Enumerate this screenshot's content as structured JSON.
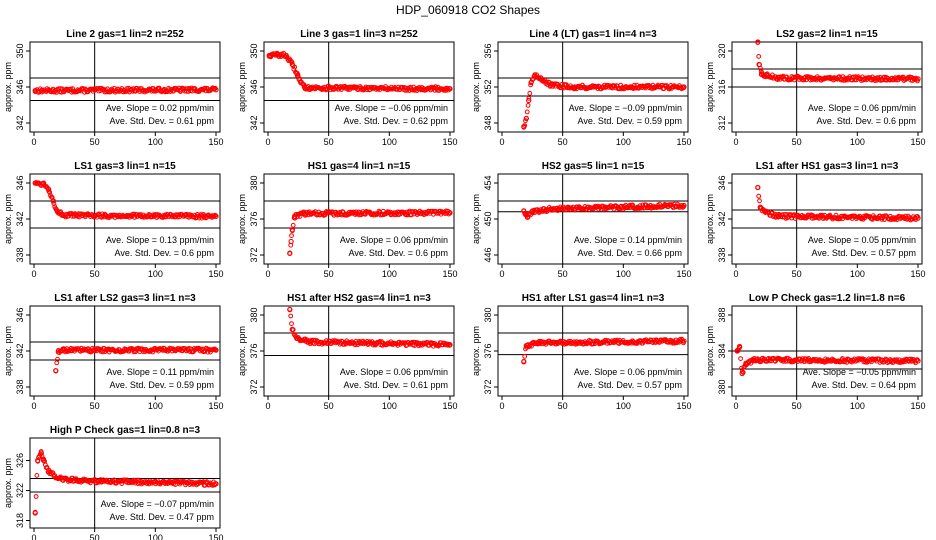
{
  "figure": {
    "title": "HDP_060918  CO2 Shapes"
  },
  "chart_data": [
    {
      "type": "scatter",
      "title": "Line 2 gas=1 lin=2 n=252",
      "ylabel": "approx. ppm",
      "xlim": [
        0,
        150
      ],
      "ylim": [
        341,
        351
      ],
      "xticks": [
        0,
        50,
        100,
        150
      ],
      "yticks": [
        342,
        346,
        350
      ],
      "hlines": [
        347,
        344.5
      ],
      "vline": 50,
      "slope_text": "Ave. Slope =  0.02  ppm/min",
      "std_text": "Ave. Std. Dev. =  0.61  ppm",
      "series": [
        {
          "start_x": 1,
          "end_x": 150,
          "points": [
            [
              1,
              345.6
            ],
            [
              150,
              345.7
            ]
          ]
        }
      ]
    },
    {
      "type": "scatter",
      "title": "Line 3 gas=1 lin=3 n=252",
      "ylabel": "approx. ppm",
      "xlim": [
        0,
        150
      ],
      "ylim": [
        341,
        351
      ],
      "xticks": [
        0,
        50,
        100,
        150
      ],
      "yticks": [
        342,
        346,
        350
      ],
      "hlines": [
        347,
        344.5
      ],
      "vline": 50,
      "slope_text": "Ave. Slope =  −0.06  ppm/min",
      "std_text": "Ave. Std. Dev. =  0.62  ppm",
      "series": [
        {
          "start_x": 1,
          "end_x": 150,
          "points": [
            [
              1,
              349.5
            ],
            [
              8,
              349.6
            ],
            [
              15,
              349.5
            ],
            [
              20,
              348.5
            ],
            [
              24,
              347.5
            ],
            [
              27,
              346.5
            ],
            [
              30,
              346.0
            ],
            [
              35,
              345.9
            ],
            [
              150,
              345.8
            ]
          ]
        }
      ]
    },
    {
      "type": "scatter",
      "title": "Line 4 (LT) gas=1 lin=4 n=3",
      "ylabel": "approx. ppm",
      "xlim": [
        0,
        150
      ],
      "ylim": [
        347,
        357
      ],
      "xticks": [
        0,
        50,
        100,
        150
      ],
      "yticks": [
        348,
        352,
        356
      ],
      "hlines": [
        353,
        351
      ],
      "vline": 50,
      "slope_text": "Ave. Slope =  −0.09  ppm/min",
      "std_text": "Ave. Std. Dev. =  0.59  ppm",
      "series": [
        {
          "start_x": 18,
          "end_x": 150,
          "points": [
            [
              18,
              347.6
            ],
            [
              20,
              348.5
            ],
            [
              22,
              350.5
            ],
            [
              24,
              352.5
            ],
            [
              27,
              353.2
            ],
            [
              32,
              353.0
            ],
            [
              40,
              352.2
            ],
            [
              60,
              352.0
            ],
            [
              150,
              352.0
            ]
          ]
        }
      ]
    },
    {
      "type": "scatter",
      "title": "LS2 gas=2 lin=1 n=15",
      "ylabel": "approx. ppm",
      "xlim": [
        0,
        150
      ],
      "ylim": [
        311,
        321
      ],
      "xticks": [
        0,
        50,
        100,
        150
      ],
      "yticks": [
        312,
        316,
        320
      ],
      "hlines": [
        318,
        316
      ],
      "vline": 50,
      "slope_text": "Ave. Slope =  0.06  ppm/min",
      "std_text": "Ave. Std. Dev. =  0.6  ppm",
      "series": [
        {
          "start_x": 18,
          "end_x": 150,
          "points": [
            [
              18,
              321.0
            ],
            [
              19,
              318.5
            ],
            [
              21,
              317.4
            ],
            [
              25,
              317.3
            ],
            [
              35,
              317.0
            ],
            [
              150,
              316.9
            ]
          ]
        }
      ]
    },
    {
      "type": "scatter",
      "title": "LS1 gas=3 lin=1 n=15",
      "ylabel": "approx. ppm",
      "xlim": [
        0,
        150
      ],
      "ylim": [
        337,
        347
      ],
      "xticks": [
        0,
        50,
        100,
        150
      ],
      "yticks": [
        338,
        342,
        346
      ],
      "hlines": [
        344,
        341
      ],
      "vline": 50,
      "slope_text": "Ave. Slope =  0.13  ppm/min",
      "std_text": "Ave. Std. Dev. =  0.6  ppm",
      "series": [
        {
          "start_x": 1,
          "end_x": 150,
          "points": [
            [
              1,
              346.0
            ],
            [
              8,
              345.9
            ],
            [
              12,
              345.3
            ],
            [
              16,
              344.0
            ],
            [
              19,
              342.9
            ],
            [
              24,
              342.4
            ],
            [
              150,
              342.3
            ]
          ]
        }
      ]
    },
    {
      "type": "scatter",
      "title": "HS1 gas=4 lin=1 n=15",
      "ylabel": "approx. ppm",
      "xlim": [
        0,
        150
      ],
      "ylim": [
        371,
        381
      ],
      "xticks": [
        0,
        50,
        100,
        150
      ],
      "yticks": [
        372,
        376,
        380
      ],
      "hlines": [
        378,
        375
      ],
      "vline": 50,
      "slope_text": "Ave. Slope =  0.06  ppm/min",
      "std_text": "Ave. Std. Dev. =  0.6  ppm",
      "series": [
        {
          "start_x": 18,
          "end_x": 150,
          "points": [
            [
              18,
              372.2
            ],
            [
              19,
              373.5
            ],
            [
              20,
              374.8
            ],
            [
              22,
              376.3
            ],
            [
              30,
              376.6
            ],
            [
              150,
              376.7
            ]
          ]
        }
      ]
    },
    {
      "type": "scatter",
      "title": "HS2 gas=5 lin=1 n=15",
      "ylabel": "approx. ppm",
      "xlim": [
        0,
        150
      ],
      "ylim": [
        445,
        455
      ],
      "xticks": [
        0,
        50,
        100,
        150
      ],
      "yticks": [
        446,
        450,
        454
      ],
      "hlines": [
        452,
        450.8
      ],
      "vline": 50,
      "slope_text": "Ave. Slope =  0.14  ppm/min",
      "std_text": "Ave. Std. Dev. =  0.66  ppm",
      "series": [
        {
          "start_x": 18,
          "end_x": 150,
          "points": [
            [
              18,
              450.9
            ],
            [
              21,
              450.2
            ],
            [
              25,
              450.8
            ],
            [
              40,
              451.1
            ],
            [
              150,
              451.5
            ]
          ]
        }
      ]
    },
    {
      "type": "scatter",
      "title": "LS1 after HS1 gas=3 lin=1 n=3",
      "ylabel": "approx. ppm",
      "xlim": [
        0,
        150
      ],
      "ylim": [
        337,
        347
      ],
      "xticks": [
        0,
        50,
        100,
        150
      ],
      "yticks": [
        338,
        342,
        346
      ],
      "hlines": [
        343,
        341
      ],
      "vline": 50,
      "slope_text": "Ave. Slope =  0.05  ppm/min",
      "std_text": "Ave. Std. Dev. =  0.57  ppm",
      "series": [
        {
          "start_x": 18,
          "end_x": 150,
          "points": [
            [
              18,
              345.5
            ],
            [
              20,
              343.3
            ],
            [
              24,
              342.8
            ],
            [
              35,
              342.3
            ],
            [
              150,
              342.1
            ]
          ]
        }
      ]
    },
    {
      "type": "scatter",
      "title": "LS1 after LS2 gas=3 lin=1 n=3",
      "ylabel": "approx. ppm",
      "xlim": [
        0,
        150
      ],
      "ylim": [
        337,
        347
      ],
      "xticks": [
        0,
        50,
        100,
        150
      ],
      "yticks": [
        338,
        342,
        346
      ],
      "hlines": [
        343,
        341
      ],
      "vline": 50,
      "slope_text": "Ave. Slope =  0.11  ppm/min",
      "std_text": "Ave. Std. Dev. =  0.59  ppm",
      "series": [
        {
          "start_x": 18,
          "end_x": 150,
          "points": [
            [
              18,
              339.8
            ],
            [
              20,
              341.9
            ],
            [
              25,
              342.1
            ],
            [
              150,
              342.1
            ]
          ]
        }
      ]
    },
    {
      "type": "scatter",
      "title": "HS1 after HS2 gas=4 lin=1 n=3",
      "ylabel": "approx. ppm",
      "xlim": [
        0,
        150
      ],
      "ylim": [
        371,
        381
      ],
      "xticks": [
        0,
        50,
        100,
        150
      ],
      "yticks": [
        372,
        376,
        380
      ],
      "hlines": [
        378,
        375.5
      ],
      "vline": 50,
      "slope_text": "Ave. Slope =  0.06  ppm/min",
      "std_text": "Ave. Std. Dev. =  0.61  ppm",
      "series": [
        {
          "start_x": 18,
          "end_x": 150,
          "points": [
            [
              18,
              380.6
            ],
            [
              20,
              378.4
            ],
            [
              24,
              377.4
            ],
            [
              35,
              377.0
            ],
            [
              150,
              376.7
            ]
          ]
        }
      ]
    },
    {
      "type": "scatter",
      "title": "HS1 after LS1 gas=4 lin=1 n=3",
      "ylabel": "approx. ppm",
      "xlim": [
        0,
        150
      ],
      "ylim": [
        371,
        381
      ],
      "xticks": [
        0,
        50,
        100,
        150
      ],
      "yticks": [
        372,
        376,
        380
      ],
      "hlines": [
        378,
        375.6
      ],
      "vline": 50,
      "slope_text": "Ave. Slope =  0.06  ppm/min",
      "std_text": "Ave. Std. Dev. =  0.57  ppm",
      "series": [
        {
          "start_x": 18,
          "end_x": 150,
          "points": [
            [
              18,
              374.8
            ],
            [
              20,
              376.6
            ],
            [
              30,
              376.9
            ],
            [
              150,
              377.1
            ]
          ]
        }
      ]
    },
    {
      "type": "scatter",
      "title": "Low P Check gas=1.2 lin=1.8 n=6",
      "ylabel": "approx. ppm",
      "xlim": [
        0,
        150
      ],
      "ylim": [
        379,
        389
      ],
      "xticks": [
        0,
        50,
        100,
        150
      ],
      "yticks": [
        380,
        384,
        388
      ],
      "hlines": [
        384,
        382
      ],
      "vline": 50,
      "slope_text": "Ave. Slope =  −0.05  ppm/min",
      "std_text": "Ave. Std. Dev. =  0.64  ppm",
      "series": [
        {
          "start_x": 1,
          "end_x": 150,
          "points": [
            [
              1,
              384.0
            ],
            [
              3,
              384.5
            ],
            [
              5,
              381.5
            ],
            [
              8,
              382.5
            ],
            [
              15,
              383.0
            ],
            [
              150,
              382.9
            ]
          ]
        }
      ]
    },
    {
      "type": "scatter",
      "title": "High P Check gas=1 lin=0.8 n=3",
      "ylabel": "approx. ppm",
      "xlim": [
        0,
        150
      ],
      "ylim": [
        317,
        329
      ],
      "xticks": [
        0,
        50,
        100,
        150
      ],
      "yticks": [
        318,
        322,
        326
      ],
      "hlines": [
        323.6,
        321.8
      ],
      "vline": 50,
      "slope_text": "Ave. Slope =  −0.07  ppm/min",
      "std_text": "Ave. Std. Dev. =  0.47  ppm",
      "series": [
        {
          "start_x": 1,
          "end_x": 150,
          "points": [
            [
              1,
              319.0
            ],
            [
              3,
              326.0
            ],
            [
              6,
              327.0
            ],
            [
              8,
              326.0
            ],
            [
              12,
              324.5
            ],
            [
              20,
              323.6
            ],
            [
              40,
              323.3
            ],
            [
              150,
              322.9
            ]
          ]
        }
      ]
    }
  ],
  "colors": {
    "points": "#ff0000",
    "axes": "#000000",
    "background": "#ffffff"
  }
}
